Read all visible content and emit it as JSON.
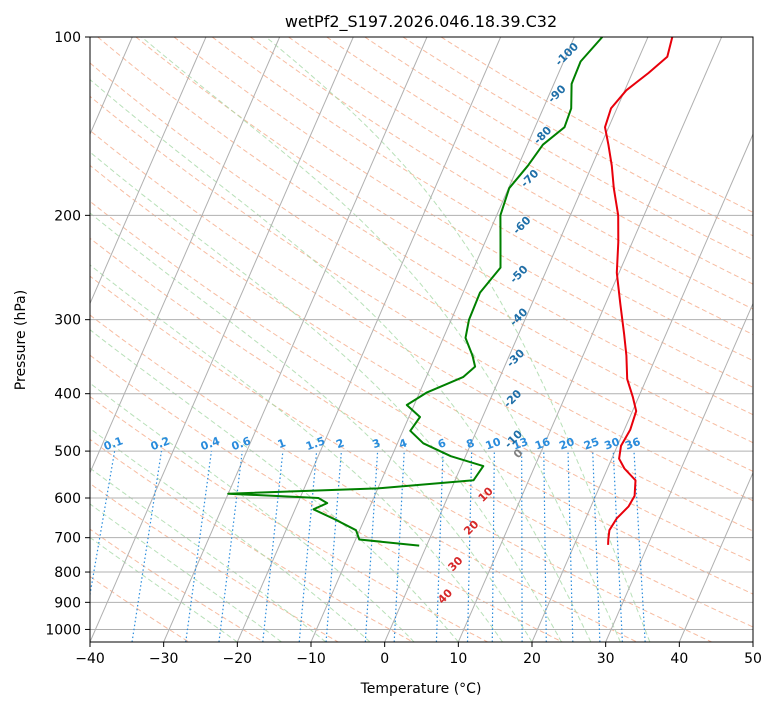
{
  "chart_data": {
    "type": "line",
    "title": "wetPf2_S197.2026.046.18.39.C32",
    "xlabel": "Temperature (°C)",
    "ylabel": "Pressure (hPa)",
    "xlim": [
      -40,
      50
    ],
    "ylim": [
      1050,
      100
    ],
    "y_scale": "log",
    "x_ticks": [
      -40,
      -30,
      -20,
      -10,
      0,
      10,
      20,
      30,
      40,
      50
    ],
    "x_tick_labels": [
      "−40",
      "−30",
      "−20",
      "−10",
      "0",
      "10",
      "20",
      "30",
      "40",
      "50"
    ],
    "y_ticks": [
      100,
      200,
      300,
      400,
      500,
      600,
      700,
      800,
      900,
      1000
    ],
    "y_tick_labels": [
      "100",
      "200",
      "300",
      "400",
      "500",
      "600",
      "700",
      "800",
      "900",
      "1000"
    ],
    "grid": true,
    "skew_degrees_per_decade": 35,
    "series": [
      {
        "color": "#e8000b",
        "points": [
          [
            3.3,
            100
          ],
          [
            3.8,
            108
          ],
          [
            2.2,
            115
          ],
          [
            0.2,
            123
          ],
          [
            -0.8,
            132
          ],
          [
            -0.5,
            142
          ],
          [
            1.0,
            152
          ],
          [
            2.7,
            165
          ],
          [
            4.3,
            180
          ],
          [
            6.5,
            200
          ],
          [
            8.1,
            222
          ],
          [
            9.7,
            250
          ],
          [
            12.0,
            282
          ],
          [
            14.3,
            317
          ],
          [
            15.9,
            345
          ],
          [
            17.4,
            378
          ],
          [
            19.2,
            405
          ],
          [
            20.5,
            428
          ],
          [
            20.8,
            460
          ],
          [
            20.5,
            490
          ],
          [
            21.0,
            515
          ],
          [
            22.3,
            535
          ],
          [
            24.5,
            560
          ],
          [
            25.3,
            595
          ],
          [
            25.1,
            620
          ],
          [
            24.2,
            650
          ],
          [
            23.9,
            680
          ],
          [
            24.3,
            705
          ],
          [
            24.6,
            720
          ]
        ]
      },
      {
        "color": "#008000",
        "points": [
          [
            -6.2,
            100
          ],
          [
            -7.7,
            110
          ],
          [
            -7.6,
            120
          ],
          [
            -6.2,
            132
          ],
          [
            -6.0,
            142
          ],
          [
            -7.9,
            152
          ],
          [
            -8.7,
            165
          ],
          [
            -9.9,
            180
          ],
          [
            -9.5,
            200
          ],
          [
            -7.9,
            222
          ],
          [
            -6.4,
            245
          ],
          [
            -7.7,
            270
          ],
          [
            -7.6,
            300
          ],
          [
            -7.0,
            322
          ],
          [
            -5.0,
            345
          ],
          [
            -4.0,
            360
          ],
          [
            -5.0,
            375
          ],
          [
            -9.0,
            398
          ],
          [
            -11.0,
            418
          ],
          [
            -8.5,
            438
          ],
          [
            -9.0,
            462
          ],
          [
            -6.5,
            485
          ],
          [
            -2.0,
            510
          ],
          [
            3.0,
            530
          ],
          [
            2.5,
            560
          ],
          [
            -10.0,
            578
          ],
          [
            -30.0,
            590
          ],
          [
            -17.5,
            600
          ],
          [
            -16.0,
            612
          ],
          [
            -17.5,
            627
          ],
          [
            -14.0,
            652
          ],
          [
            -10.5,
            680
          ],
          [
            -9.5,
            705
          ],
          [
            -1.0,
            722
          ]
        ]
      }
    ],
    "dry_adiabat_labels": [
      "-100",
      "-90",
      "-80",
      "-70",
      "-60",
      "-50",
      "-40",
      "-30",
      "-20",
      "-10",
      "0",
      "10",
      "20",
      "30",
      "40"
    ],
    "mixing_ratio_labels": [
      "0.1",
      "0.2",
      "0.4",
      "0.6",
      "1",
      "1.5",
      "2",
      "3",
      "4",
      "6",
      "8",
      "10",
      "13",
      "16",
      "20",
      "25",
      "30",
      "36"
    ],
    "colors": {
      "temperature": "#e8000b",
      "dewpoint": "#008000",
      "isobar_grid": "#b0b0b0",
      "isotherm": "#b0b0b0",
      "dry_adiabat": "#f4a582",
      "moist_adiabat": "#a6d8a6",
      "mixing_ratio": "#2a8cdc",
      "label_cold": "#1f6fa8",
      "label_warm": "#d62728",
      "label_zero": "#808080"
    }
  }
}
